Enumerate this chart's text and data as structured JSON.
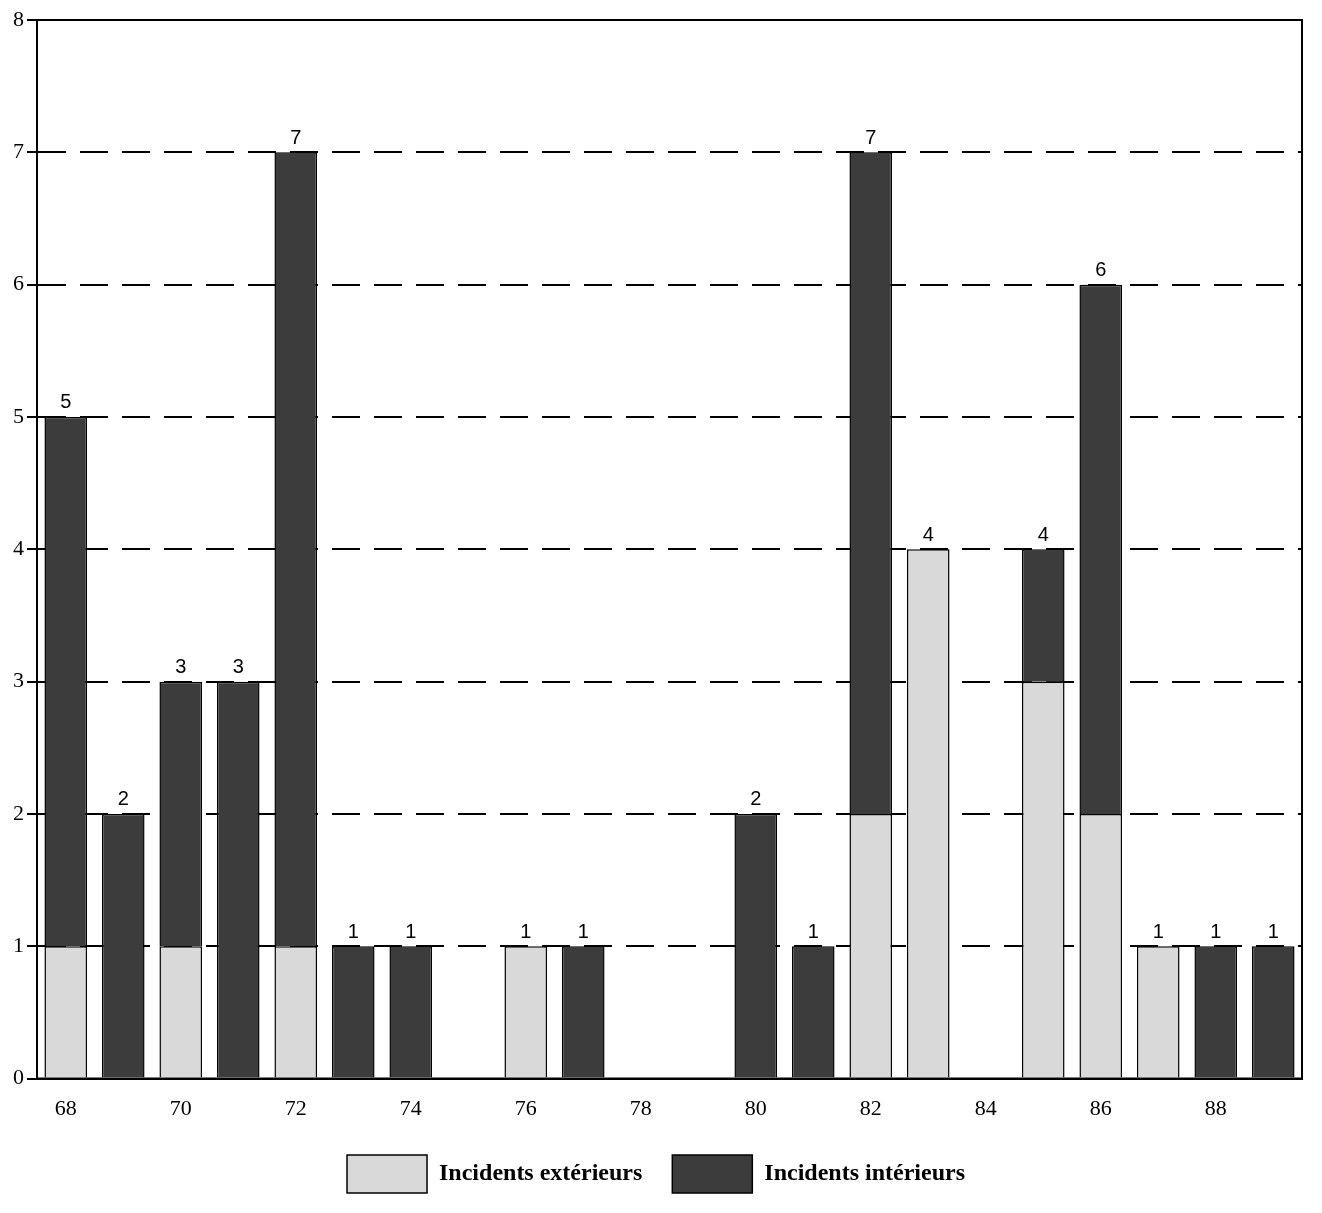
{
  "chart_data": {
    "type": "bar",
    "stacked": true,
    "categories": [
      "68",
      null,
      "70",
      null,
      "72",
      null,
      "74",
      null,
      "76",
      null,
      "78",
      null,
      "80",
      null,
      "82",
      null,
      "84",
      null,
      "86",
      null,
      "88",
      null
    ],
    "series": [
      {
        "name": "Incidents extérieurs",
        "color": "#d9d9d9",
        "values": [
          1,
          null,
          1,
          null,
          1,
          null,
          null,
          null,
          1,
          null,
          null,
          null,
          null,
          null,
          2,
          4,
          null,
          3,
          2,
          1,
          null,
          null
        ]
      },
      {
        "name": "Incidents intérieurs",
        "color": "#3c3c3c",
        "values": [
          4,
          2,
          2,
          3,
          6,
          1,
          1,
          null,
          null,
          1,
          null,
          null,
          2,
          1,
          5,
          null,
          null,
          1,
          4,
          null,
          1,
          1
        ]
      }
    ],
    "totals": [
      "5",
      "2",
      "3",
      "3",
      "7",
      "1",
      "1",
      null,
      "1",
      "1",
      null,
      null,
      "2",
      "1",
      "7",
      "4",
      null,
      "4",
      "6",
      "1",
      "1",
      "1"
    ],
    "ylim": [
      0,
      8
    ],
    "yticks": [
      0,
      1,
      2,
      3,
      4,
      5,
      6,
      7,
      8
    ],
    "grid": "y",
    "legend": "bottom"
  }
}
